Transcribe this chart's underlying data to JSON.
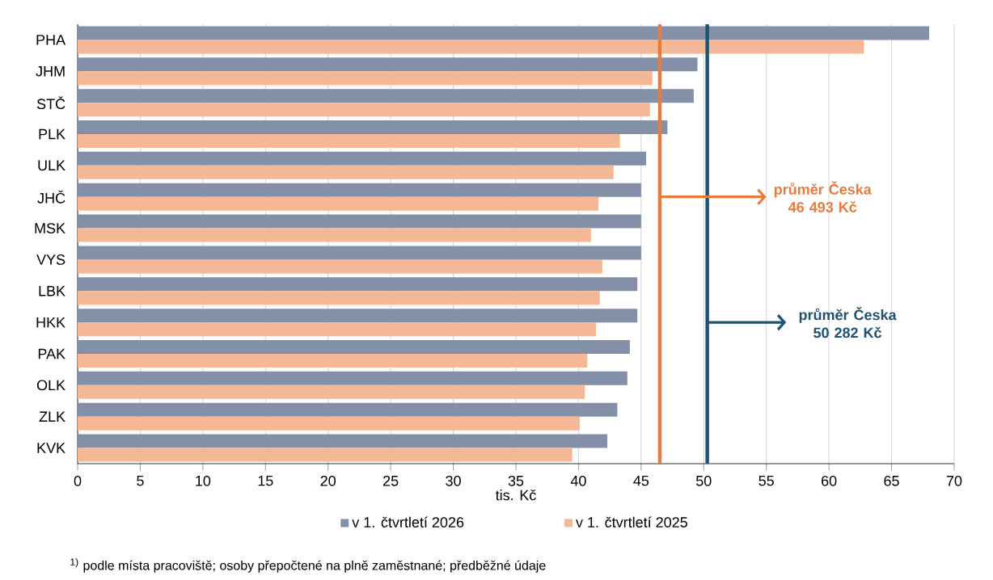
{
  "chart_data": {
    "type": "bar",
    "orientation": "horizontal",
    "categories": [
      "PHA",
      "JHM",
      "STČ",
      "PLK",
      "ULK",
      "JHČ",
      "MSK",
      "VYS",
      "LBK",
      "HKK",
      "PAK",
      "OLK",
      "ZLK",
      "KVK"
    ],
    "series": [
      {
        "name": "v 1. čtvrtletí 2026",
        "color": "#8490a8",
        "values": [
          68.0,
          49.5,
          49.2,
          47.1,
          45.4,
          45.0,
          45.0,
          45.0,
          44.7,
          44.7,
          44.1,
          43.9,
          43.1,
          42.3
        ]
      },
      {
        "name": "v 1. čtvrtletí 2025",
        "color": "#f4b896",
        "values": [
          62.8,
          45.9,
          45.7,
          43.3,
          42.8,
          41.6,
          41.0,
          41.9,
          41.7,
          41.4,
          40.7,
          40.5,
          40.1,
          39.5
        ]
      }
    ],
    "xlabel": "tis. Kč",
    "xlim": [
      0,
      70
    ],
    "xticks": [
      0,
      5,
      10,
      15,
      20,
      25,
      30,
      35,
      40,
      45,
      50,
      55,
      60,
      65,
      70
    ],
    "ref_lines": [
      {
        "axis": "x",
        "value": 46.493,
        "label": "průměr Česka 46 493 Kč",
        "color": "#e87b3c"
      },
      {
        "axis": "x",
        "value": 50.282,
        "label": "průměr Česka 50 282 Kč",
        "color": "#1f5170"
      }
    ],
    "annotations": [
      "$^{1)}$ podle místa pracoviště; osoby přepočtené na plně zaměstnané; předběžné údaje"
    ],
    "grid": "x",
    "legend": "bottom"
  }
}
